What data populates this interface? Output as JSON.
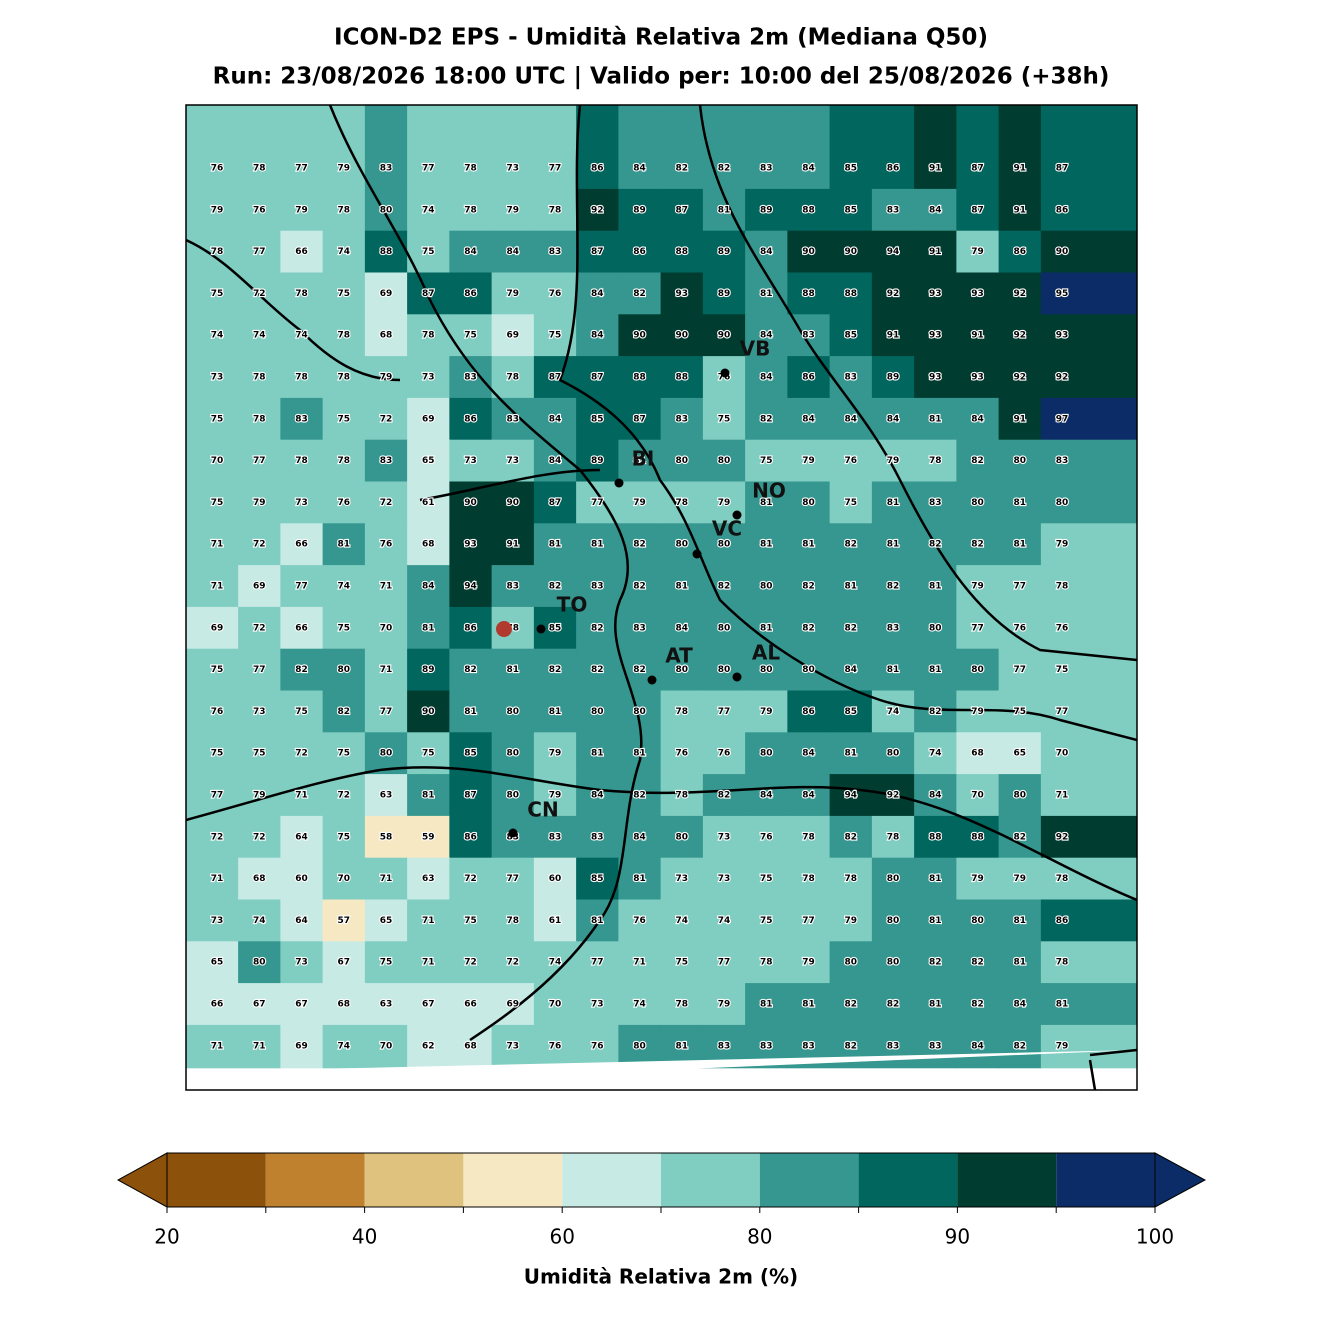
{
  "map": {
    "title": "ICON-D2 EPS - Umidità Relativa 2m (Mediana Q50)",
    "subtitle": "Run: 23/08/2026 18:00 UTC | Valido per: 10:00 del 25/08/2026 (+38h)",
    "grid": [
      [
        76,
        78,
        77,
        79,
        83,
        77,
        78,
        73,
        77,
        86,
        84,
        82,
        82,
        83,
        84,
        85,
        86,
        91,
        87,
        91,
        87
      ],
      [
        79,
        76,
        79,
        78,
        80,
        74,
        78,
        79,
        78,
        92,
        89,
        87,
        81,
        89,
        88,
        85,
        83,
        84,
        87,
        91,
        86
      ],
      [
        78,
        77,
        66,
        74,
        88,
        75,
        84,
        84,
        83,
        87,
        86,
        88,
        89,
        84,
        90,
        90,
        94,
        91,
        79,
        86,
        90
      ],
      [
        75,
        72,
        78,
        75,
        69,
        87,
        86,
        79,
        76,
        84,
        82,
        93,
        89,
        81,
        88,
        88,
        92,
        93,
        93,
        92,
        95
      ],
      [
        74,
        74,
        74,
        78,
        68,
        78,
        75,
        69,
        75,
        84,
        90,
        90,
        90,
        84,
        83,
        85,
        91,
        93,
        91,
        92,
        93
      ],
      [
        73,
        78,
        78,
        78,
        79,
        73,
        83,
        78,
        87,
        87,
        88,
        88,
        76,
        84,
        86,
        83,
        89,
        93,
        93,
        92,
        92
      ],
      [
        75,
        78,
        83,
        75,
        72,
        69,
        86,
        83,
        84,
        85,
        87,
        83,
        75,
        82,
        84,
        84,
        84,
        81,
        84,
        91,
        97
      ],
      [
        70,
        77,
        78,
        78,
        83,
        65,
        73,
        73,
        84,
        89,
        81,
        80,
        80,
        75,
        79,
        76,
        79,
        78,
        82,
        80,
        83
      ],
      [
        75,
        79,
        73,
        76,
        72,
        61,
        90,
        90,
        87,
        77,
        79,
        78,
        79,
        81,
        80,
        75,
        81,
        83,
        80,
        81,
        80
      ],
      [
        71,
        72,
        66,
        81,
        76,
        68,
        93,
        91,
        81,
        81,
        82,
        80,
        80,
        81,
        81,
        82,
        81,
        82,
        82,
        81,
        79
      ],
      [
        71,
        69,
        77,
        74,
        71,
        84,
        94,
        83,
        82,
        83,
        82,
        81,
        82,
        80,
        82,
        81,
        82,
        81,
        79,
        77,
        78
      ],
      [
        69,
        72,
        66,
        75,
        70,
        81,
        86,
        78,
        85,
        82,
        83,
        84,
        80,
        81,
        82,
        82,
        83,
        80,
        77,
        76,
        76
      ],
      [
        75,
        77,
        82,
        80,
        71,
        89,
        82,
        81,
        82,
        82,
        82,
        80,
        80,
        80,
        80,
        84,
        81,
        81,
        80,
        77,
        75
      ],
      [
        76,
        73,
        75,
        82,
        77,
        90,
        81,
        80,
        81,
        80,
        80,
        78,
        77,
        79,
        86,
        85,
        74,
        82,
        79,
        75,
        77
      ],
      [
        75,
        75,
        72,
        75,
        80,
        75,
        85,
        80,
        79,
        81,
        81,
        76,
        76,
        80,
        84,
        81,
        80,
        74,
        68,
        65,
        70
      ],
      [
        77,
        79,
        71,
        72,
        63,
        81,
        87,
        80,
        79,
        84,
        82,
        78,
        82,
        84,
        84,
        94,
        92,
        84,
        70,
        80,
        71
      ],
      [
        72,
        72,
        64,
        75,
        58,
        59,
        86,
        83,
        83,
        83,
        84,
        80,
        73,
        76,
        78,
        82,
        78,
        88,
        88,
        82,
        92
      ],
      [
        71,
        68,
        60,
        70,
        71,
        63,
        72,
        77,
        60,
        85,
        81,
        73,
        73,
        75,
        78,
        78,
        80,
        81,
        79,
        79,
        78
      ],
      [
        73,
        74,
        64,
        57,
        65,
        71,
        75,
        78,
        61,
        81,
        76,
        74,
        74,
        75,
        77,
        79,
        80,
        81,
        80,
        81,
        86
      ],
      [
        65,
        80,
        73,
        67,
        75,
        71,
        72,
        72,
        74,
        77,
        71,
        75,
        77,
        78,
        79,
        80,
        80,
        82,
        82,
        81,
        78
      ],
      [
        66,
        67,
        67,
        68,
        63,
        67,
        66,
        69,
        70,
        73,
        74,
        78,
        79,
        81,
        81,
        82,
        82,
        81,
        82,
        84,
        81
      ],
      [
        71,
        71,
        69,
        74,
        70,
        62,
        68,
        73,
        76,
        76,
        80,
        81,
        83,
        83,
        83,
        82,
        83,
        83,
        84,
        82,
        79
      ]
    ],
    "cities": [
      "VB",
      "BI",
      "NO",
      "VC",
      "TO",
      "AT",
      "AL",
      "CN"
    ],
    "colorbar": {
      "levels": [
        20,
        30,
        40,
        50,
        60,
        70,
        80,
        85,
        90,
        95,
        100
      ],
      "colors": [
        "#8c510a",
        "#bf812d",
        "#dfc27d",
        "#f6e8c3",
        "#c7eae5",
        "#80cdc1",
        "#35978f",
        "#01665e",
        "#003c30",
        "#0b2c66"
      ],
      "ticks": [
        20,
        40,
        60,
        80,
        90,
        100
      ],
      "label": "Umidità Relativa 2m (%)"
    }
  }
}
